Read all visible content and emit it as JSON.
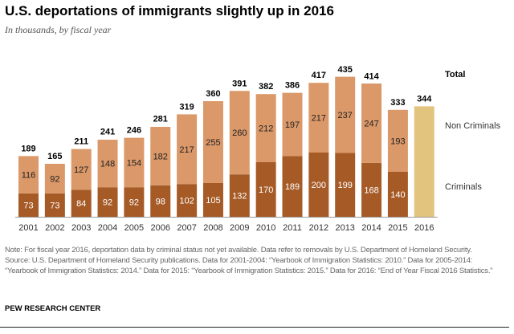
{
  "title": "U.S. deportations of immigrants slightly up in 2016",
  "subtitle": "In thousands, by fiscal year",
  "note": "Note: For fiscal year 2016, deportation data by criminal status not yet available. Data refer to removals by U.S. Department of Homeland Security.",
  "source": "Source: U.S. Department of Homeland Security publications. Data for 2001-2004: “Yearbook of Immigration Statistics: 2010.” Data for 2005-2014: “Yearbook of Immigration Statistics: 2014.” Data for 2015: “Yearbook of Immigration Statistics: 2015.” Data for 2016: “End of Year Fiscal 2016 Statistics.”",
  "organization": "PEW RESEARCH CENTER",
  "chart_data": {
    "type": "bar",
    "stacked": true,
    "categories": [
      "2001",
      "2002",
      "2003",
      "2004",
      "2005",
      "2006",
      "2007",
      "2008",
      "2009",
      "2010",
      "2011",
      "2012",
      "2013",
      "2014",
      "2015",
      "2016"
    ],
    "series": [
      {
        "name": "Criminals",
        "color": "#a65b27",
        "values": [
          73,
          73,
          84,
          92,
          92,
          98,
          102,
          105,
          132,
          170,
          189,
          200,
          199,
          168,
          140,
          null
        ]
      },
      {
        "name": "Non Criminals",
        "color": "#db9869",
        "values": [
          116,
          92,
          127,
          148,
          154,
          182,
          217,
          255,
          260,
          212,
          197,
          217,
          237,
          247,
          193,
          null
        ]
      }
    ],
    "totals": {
      "name": "Total",
      "values": [
        189,
        165,
        211,
        241,
        246,
        281,
        319,
        360,
        391,
        382,
        386,
        417,
        435,
        414,
        333,
        344
      ]
    },
    "total_only_color": "#e2c47e",
    "legend_placement": "right",
    "grid": false
  }
}
